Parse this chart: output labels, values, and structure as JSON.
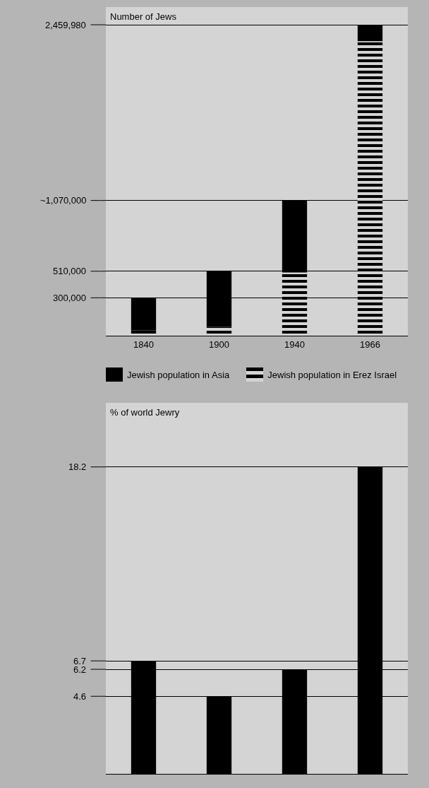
{
  "chart_data": [
    {
      "type": "bar",
      "stacked": true,
      "ylabel": "Number of Jews",
      "categories": [
        "1840",
        "1900",
        "1940",
        "1966"
      ],
      "series": [
        {
          "name": "Jewish population in Erez Israel",
          "color": "#000000",
          "values": [
            40000,
            70000,
            500000,
            2330000
          ]
        },
        {
          "name": "Jewish population in Asia",
          "color": "#000000",
          "values": [
            260000,
            440000,
            570000,
            129980
          ]
        }
      ],
      "ylim": [
        0,
        2600000
      ],
      "yticks": [
        {
          "value": 300000,
          "label": "300,000"
        },
        {
          "value": 510000,
          "label": "510,000"
        },
        {
          "value": 1070000,
          "label": "~1,070,000"
        },
        {
          "value": 2459980,
          "label": "2,459,980"
        }
      ],
      "grid": "y",
      "legend": "bottom"
    },
    {
      "type": "bar",
      "ylabel": "% of world Jewry",
      "categories": [
        "1840",
        "1900",
        "1940",
        "1966"
      ],
      "values": [
        6.7,
        4.6,
        6.2,
        18.2
      ],
      "color": "#000000",
      "ylim": [
        0,
        22
      ],
      "yticks": [
        4.6,
        6.2,
        6.7,
        18.2
      ],
      "grid": "y",
      "tick_labels": "y"
    }
  ]
}
